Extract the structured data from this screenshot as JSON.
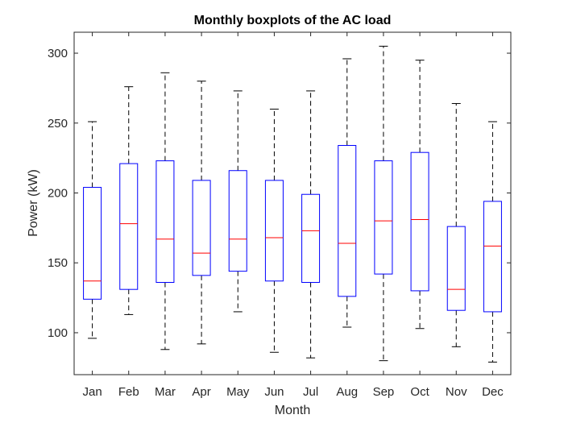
{
  "chart_data": {
    "type": "boxplot",
    "title": "Monthly boxplots of the AC load",
    "xlabel": "Month",
    "ylabel": "Power (kW)",
    "ylim": [
      70,
      315
    ],
    "yticks": [
      100,
      150,
      200,
      250,
      300
    ],
    "grid": false,
    "box_color": "#0000ff",
    "median_color": "#ff0000",
    "whisker_color": "#000000",
    "categories": [
      "Jan",
      "Feb",
      "Mar",
      "Apr",
      "May",
      "Jun",
      "Jul",
      "Aug",
      "Sep",
      "Oct",
      "Nov",
      "Dec"
    ],
    "boxes": [
      {
        "min": 96,
        "q1": 124,
        "median": 137,
        "q3": 204,
        "max": 251
      },
      {
        "min": 113,
        "q1": 131,
        "median": 178,
        "q3": 221,
        "max": 276
      },
      {
        "min": 88,
        "q1": 136,
        "median": 167,
        "q3": 223,
        "max": 286
      },
      {
        "min": 92,
        "q1": 141,
        "median": 157,
        "q3": 209,
        "max": 280
      },
      {
        "min": 115,
        "q1": 144,
        "median": 167,
        "q3": 216,
        "max": 273
      },
      {
        "min": 86,
        "q1": 137,
        "median": 168,
        "q3": 209,
        "max": 260
      },
      {
        "min": 82,
        "q1": 136,
        "median": 173,
        "q3": 199,
        "max": 273
      },
      {
        "min": 104,
        "q1": 126,
        "median": 164,
        "q3": 234,
        "max": 296
      },
      {
        "min": 80,
        "q1": 142,
        "median": 180,
        "q3": 223,
        "max": 305
      },
      {
        "min": 103,
        "q1": 130,
        "median": 181,
        "q3": 229,
        "max": 295
      },
      {
        "min": 90,
        "q1": 116,
        "median": 131,
        "q3": 176,
        "max": 264
      },
      {
        "min": 79,
        "q1": 115,
        "median": 162,
        "q3": 194,
        "max": 251
      }
    ]
  }
}
